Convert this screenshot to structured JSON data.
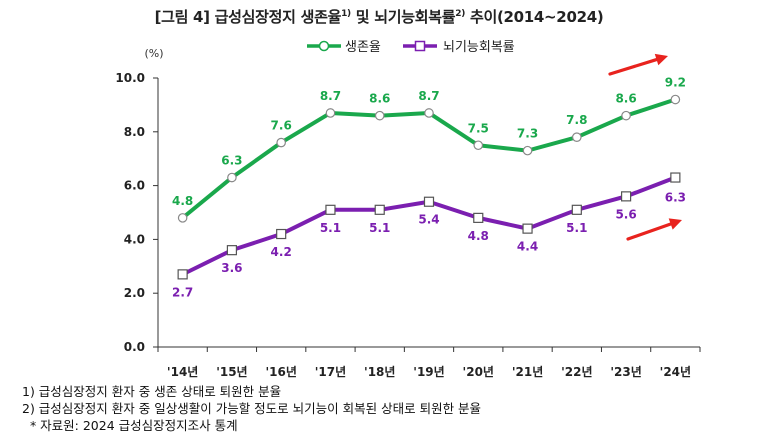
{
  "figure": {
    "title_main": "[그림 4] 급성심장정지 생존율",
    "title_sup1": "1)",
    "title_mid": " 및 뇌기능회복률",
    "title_sup2": "2)",
    "title_end": " 추이(2014~2024)"
  },
  "chart_data": {
    "type": "line",
    "title": "[그림 4] 급성심장정지 생존율 및 뇌기능회복률 추이(2014~2024)",
    "unit_label": "(%)",
    "categories": [
      "'14년",
      "'15년",
      "'16년",
      "'17년",
      "'18년",
      "'19년",
      "'20년",
      "'21년",
      "'22년",
      "'23년",
      "'24년"
    ],
    "ylim": [
      0,
      10
    ],
    "yticks": [
      "0.0",
      "2.0",
      "4.0",
      "6.0",
      "8.0",
      "10.0"
    ],
    "legend_position": "top-center",
    "series": [
      {
        "name": "생존율",
        "color": "#1aa84c",
        "marker": "circle",
        "values": [
          4.8,
          6.3,
          7.6,
          8.7,
          8.6,
          8.7,
          7.5,
          7.3,
          7.8,
          8.6,
          9.2
        ],
        "labels": [
          "4.8",
          "6.3",
          "7.6",
          "8.7",
          "8.6",
          "8.7",
          "7.5",
          "7.3",
          "7.8",
          "8.6",
          "9.2"
        ]
      },
      {
        "name": "뇌기능회복률",
        "color": "#7b1fb0",
        "marker": "square",
        "values": [
          2.7,
          3.6,
          4.2,
          5.1,
          5.1,
          5.4,
          4.8,
          4.4,
          5.1,
          5.6,
          6.3
        ],
        "labels": [
          "2.7",
          "3.6",
          "4.2",
          "5.1",
          "5.1",
          "5.4",
          "4.8",
          "4.4",
          "5.1",
          "5.6",
          "6.3"
        ]
      }
    ],
    "arrow_color": "#e8231e"
  },
  "footnotes": {
    "note1": "1) 급성심장정지 환자 중 생존 상태로 퇴원한 분율",
    "note2": "2) 급성심장정지 환자 중 일상생활이 가능할 정도로 뇌기능이 회복된 상태로 퇴원한 분율",
    "source": "  * 자료원: 2024 급성심장정지조사 통계"
  }
}
